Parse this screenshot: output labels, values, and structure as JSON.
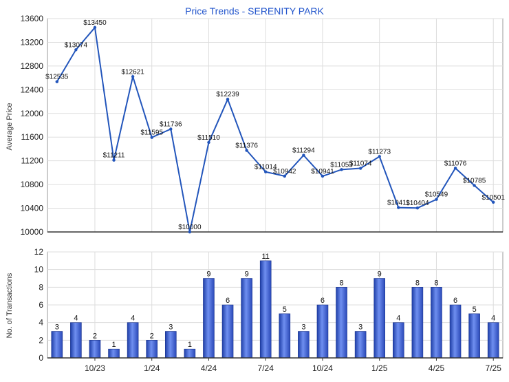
{
  "chart_data": [
    {
      "type": "line",
      "title": "Price Trends - SERENITY PARK",
      "ylabel": "Average Price",
      "ylim": [
        10000,
        13600
      ],
      "yticks": [
        10000,
        10400,
        10800,
        11200,
        11600,
        12000,
        12400,
        12800,
        13200,
        13600
      ],
      "x": [
        "8/23",
        "9/23",
        "10/23",
        "11/23",
        "12/23",
        "1/24",
        "2/24",
        "3/24",
        "4/24",
        "5/24",
        "6/24",
        "7/24",
        "8/24",
        "9/24",
        "10/24",
        "11/24",
        "12/24",
        "1/25",
        "2/25",
        "3/25",
        "4/25",
        "5/25",
        "6/25",
        "7/25"
      ],
      "xtick_labels": [
        "10/23",
        "1/24",
        "4/24",
        "7/24",
        "10/24",
        "1/25",
        "4/25",
        "7/25"
      ],
      "values": [
        12535,
        13074,
        13450,
        11211,
        12621,
        11595,
        11736,
        10000,
        11510,
        12239,
        11376,
        11014,
        10942,
        11294,
        10941,
        11053,
        11074,
        11273,
        10411,
        10404,
        10549,
        11076,
        10785,
        10501
      ],
      "data_labels": [
        "$12535",
        "$13074",
        "$13450",
        "$11211",
        "$12621",
        "$11595",
        "$11736",
        "$10000",
        "$11510",
        "$12239",
        "$11376",
        "$11014",
        "$10942",
        "$11294",
        "$10941",
        "$11053",
        "$11074",
        "$11273",
        "$10411",
        "$10404",
        "$10549",
        "$11076",
        "$10785",
        "$10501"
      ],
      "grid": true,
      "line_color": "#2255bb"
    },
    {
      "type": "bar",
      "ylabel": "No. of Transactions",
      "ylim": [
        0,
        12
      ],
      "yticks": [
        0,
        2,
        4,
        6,
        8,
        10,
        12
      ],
      "x": [
        "8/23",
        "9/23",
        "10/23",
        "11/23",
        "12/23",
        "1/24",
        "2/24",
        "3/24",
        "4/24",
        "5/24",
        "6/24",
        "7/24",
        "8/24",
        "9/24",
        "10/24",
        "11/24",
        "12/24",
        "1/25",
        "2/25",
        "3/25",
        "4/25",
        "5/25",
        "6/25",
        "7/25"
      ],
      "xtick_labels": [
        "10/23",
        "1/24",
        "4/24",
        "7/24",
        "10/24",
        "1/25",
        "4/25",
        "7/25"
      ],
      "values": [
        3,
        4,
        2,
        1,
        4,
        2,
        3,
        1,
        9,
        6,
        9,
        11,
        5,
        3,
        6,
        8,
        3,
        9,
        4,
        8,
        8,
        6,
        5,
        4
      ],
      "grid": true,
      "bar_color": "#3355cc"
    }
  ]
}
